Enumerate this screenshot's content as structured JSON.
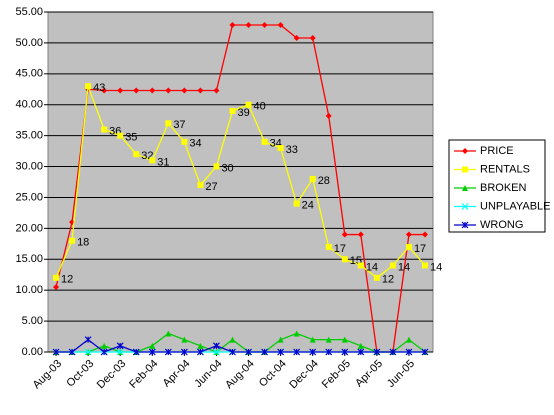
{
  "chart_data": {
    "type": "line",
    "categories": [
      "Aug-03",
      null,
      "Oct-03",
      null,
      "Dec-03",
      null,
      "Feb-04",
      null,
      "Apr-04",
      null,
      "Jun-04",
      null,
      "Aug-04",
      null,
      "Oct-04",
      null,
      "Dec-04",
      null,
      "Feb-05",
      null,
      "Apr-05",
      null,
      "Jun-05",
      null
    ],
    "series": [
      {
        "name": "PRICE",
        "color": "#ff0000",
        "marker": "diamond",
        "values": [
          10.5,
          21,
          42.5,
          42.3,
          42.3,
          42.3,
          42.3,
          42.3,
          42.3,
          42.3,
          42.3,
          52.9,
          52.9,
          52.9,
          52.9,
          50.8,
          50.8,
          38.2,
          19,
          19,
          0,
          0,
          19,
          19
        ]
      },
      {
        "name": "RENTALS",
        "color": "#ffff00",
        "marker": "square",
        "labels": true,
        "values": [
          12,
          18,
          43,
          36,
          35,
          32,
          31,
          37,
          34,
          27,
          30,
          39,
          40,
          34,
          33,
          24,
          28,
          17,
          15,
          14,
          12,
          14,
          17,
          14
        ]
      },
      {
        "name": "BROKEN",
        "color": "#00cc00",
        "marker": "triangle",
        "values": [
          0,
          0,
          0,
          1,
          0,
          0,
          1,
          3,
          2,
          1,
          0,
          2,
          0,
          0,
          2,
          3,
          2,
          2,
          2,
          1,
          0,
          0,
          2,
          0
        ]
      },
      {
        "name": "UNPLAYABLE",
        "color": "#00ffff",
        "marker": "x",
        "values": [
          0,
          0,
          0,
          0,
          0,
          0,
          0,
          0,
          0,
          0,
          0,
          0,
          0,
          0,
          0,
          0,
          0,
          0,
          0,
          0,
          0,
          0,
          0,
          0
        ]
      },
      {
        "name": "WRONG",
        "color": "#0000cc",
        "marker": "star",
        "values": [
          0,
          0,
          2,
          0,
          1,
          0,
          0,
          0,
          0,
          0,
          1,
          0,
          0,
          0,
          0,
          0,
          0,
          0,
          0,
          0,
          0,
          0,
          0,
          0
        ]
      }
    ],
    "ylim": [
      0,
      55
    ],
    "yticks": [
      {
        "value": 0,
        "label": "0.00"
      },
      {
        "value": 5,
        "label": "5.00"
      },
      {
        "value": 10,
        "label": "10.00"
      },
      {
        "value": 15,
        "label": "15.00"
      },
      {
        "value": 20,
        "label": "20.00"
      },
      {
        "value": 25,
        "label": "25.00"
      },
      {
        "value": 30,
        "label": "30.00"
      },
      {
        "value": 35,
        "label": "35.00"
      },
      {
        "value": 40,
        "label": "40.00"
      },
      {
        "value": 45,
        "label": "45.00"
      },
      {
        "value": 50,
        "label": "50.00"
      },
      {
        "value": 55,
        "label": "55.00"
      }
    ],
    "grid": true,
    "legend": "right"
  }
}
